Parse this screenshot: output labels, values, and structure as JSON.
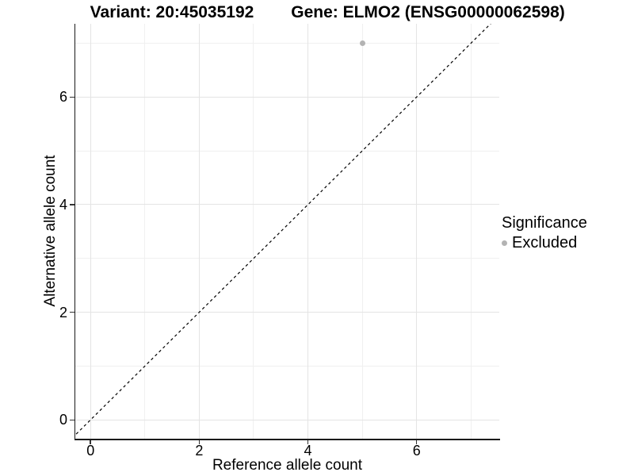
{
  "chart_data": {
    "type": "scatter",
    "title_left": "Variant: 20:45035192",
    "title_right": "Gene: ELMO2 (ENSG00000062598)",
    "xlabel": "Reference allele count",
    "ylabel": "Alternative allele count",
    "xlim": [
      -0.28,
      7.52
    ],
    "ylim": [
      -0.35,
      7.36
    ],
    "x_major_ticks": [
      0,
      2,
      4,
      6
    ],
    "x_minor_ticks": [
      1,
      3,
      5,
      7
    ],
    "y_major_ticks": [
      0,
      2,
      4,
      6
    ],
    "y_minor_ticks": [
      1,
      3,
      5,
      7
    ],
    "grid": "major+minor, white panel background",
    "series": [
      {
        "name": "Excluded",
        "color": "#b3b3b3",
        "points": [
          {
            "x": 5,
            "y": 7
          }
        ]
      }
    ],
    "reference_line": {
      "type": "identity y=x",
      "style": "dashed",
      "color": "#000000"
    },
    "legend": {
      "position": "right",
      "title": "Significance",
      "items": [
        {
          "label": "Excluded",
          "color": "#b3b3b3"
        }
      ]
    }
  },
  "colors": {
    "background": "#ffffff",
    "grid_major": "#e4e4e4",
    "grid_minor": "#f0f0f0",
    "axis_line": "#1a1a1a",
    "tick": "#333333",
    "text": "#000000"
  }
}
